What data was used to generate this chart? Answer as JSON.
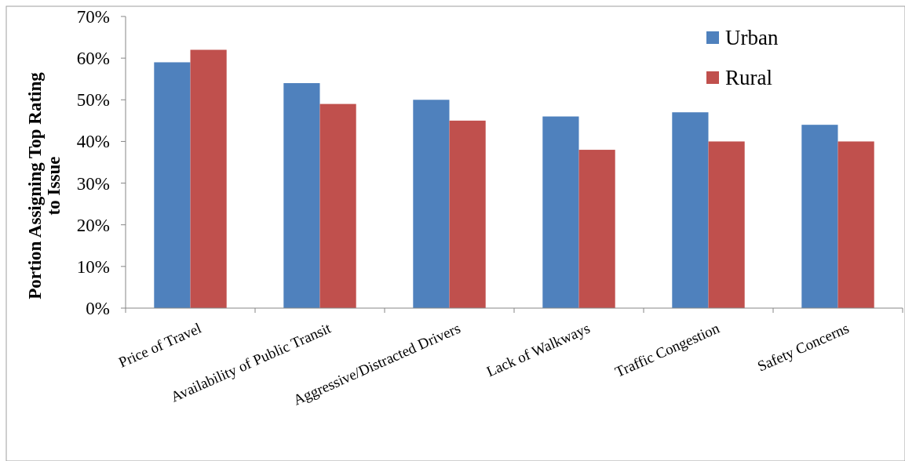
{
  "chart_data": {
    "type": "bar",
    "ylabel": "Portion Assigning Top Rating to Issue",
    "categories": [
      "Price of Travel",
      "Availability of Public Transit",
      "Aggressive/Distracted Drivers",
      "Lack of Walkways",
      "Traffic Congestion",
      "Safety Concerns"
    ],
    "series": [
      {
        "name": "Urban",
        "color": "#4f81bd",
        "values": [
          59,
          54,
          50,
          46,
          47,
          44
        ]
      },
      {
        "name": "Rural",
        "color": "#c0504d",
        "values": [
          62,
          49,
          45,
          38,
          40,
          40
        ]
      }
    ],
    "ylim": [
      0,
      70
    ],
    "yticks": [
      {
        "value": 0,
        "label": "0%"
      },
      {
        "value": 10,
        "label": "10%"
      },
      {
        "value": 20,
        "label": "20%"
      },
      {
        "value": 30,
        "label": "30%"
      },
      {
        "value": 40,
        "label": "40%"
      },
      {
        "value": 50,
        "label": "50%"
      },
      {
        "value": 60,
        "label": "60%"
      },
      {
        "value": 70,
        "label": "70%"
      }
    ],
    "grid": false,
    "legend": "top right"
  }
}
